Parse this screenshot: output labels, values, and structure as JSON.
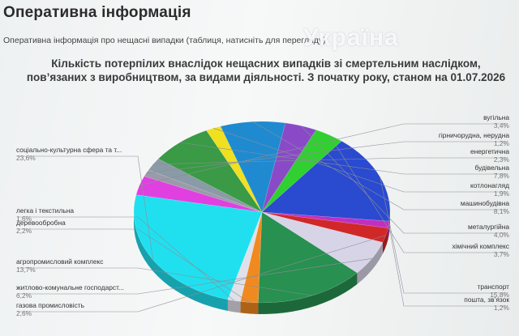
{
  "page": {
    "title": "Оперативна інформація",
    "subtitle_link": "Оперативна інформація про нещасні випадки (таблиця, натисніть для перегляду)",
    "watermark": "Україна"
  },
  "chart_data": {
    "type": "pie",
    "title_line1": "Кількість потерпілих внаслідок нещасних випадків зі смертельним наслідком,",
    "title_line2": "пов’язаних з виробництвом, за видами діяльності. З початку року, станом на 01.07.2026",
    "unit": "%",
    "slices": [
      {
        "name": "вугільна",
        "value": "3,4%",
        "pct": 3.4,
        "color": "#e040e0"
      },
      {
        "name": "гірничорудна, нерудна",
        "value": "1,2%",
        "pct": 1.2,
        "color": "#9a9aa8"
      },
      {
        "name": "енергетична",
        "value": "2,3%",
        "pct": 2.3,
        "color": "#8a9aa6"
      },
      {
        "name": "будівельна",
        "value": "7,8%",
        "pct": 7.8,
        "color": "#3a9a45"
      },
      {
        "name": "котлонагляд",
        "value": "1,9%",
        "pct": 1.9,
        "color": "#f0e020"
      },
      {
        "name": "машинобудівна",
        "value": "8,1%",
        "pct": 8.1,
        "color": "#1f8ad0"
      },
      {
        "name": "металургійна",
        "value": "4,0%",
        "pct": 4.0,
        "color": "#8a4ac8"
      },
      {
        "name": "хімічний комплекс",
        "value": "3,7%",
        "pct": 3.7,
        "color": "#30d030"
      },
      {
        "name": "транспорт",
        "value": "15,8%",
        "pct": 15.8,
        "color": "#2a4ad0"
      },
      {
        "name": "пошта, зв’язок",
        "value": "1,2%",
        "pct": 1.2,
        "color": "#c030c0"
      },
      {
        "name": "газова промисловість",
        "value": "2,6%",
        "pct": 2.6,
        "color": "#d02828"
      },
      {
        "name": "житлово-комунальне господарст...",
        "value": "6,2%",
        "pct": 6.2,
        "color": "#d8d4e8"
      },
      {
        "name": "агропромисловий комплекс",
        "value": "13,7%",
        "pct": 13.7,
        "color": "#289050"
      },
      {
        "name": "деревообробна",
        "value": "2,2%",
        "pct": 2.2,
        "color": "#f08a20"
      },
      {
        "name": "легка і текстильна",
        "value": "1,6%",
        "pct": 1.6,
        "color": "#e0e0e8"
      },
      {
        "name": "соціально-культурна сфера та т...",
        "value": "23,6%",
        "pct": 23.6,
        "color": "#20e0f0"
      }
    ]
  }
}
